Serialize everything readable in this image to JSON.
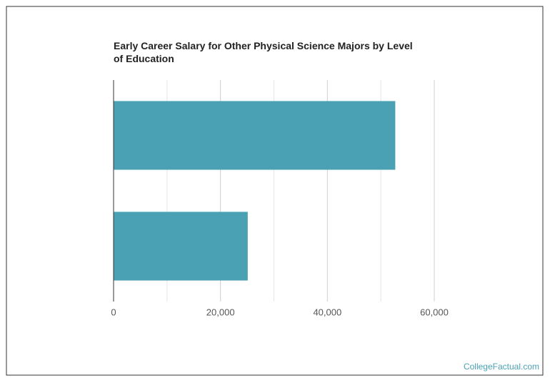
{
  "chart_data": {
    "type": "bar",
    "orientation": "horizontal",
    "title": "Early Career Salary for Other Physical Science Majors by Level of Education",
    "categories": [
      null,
      null
    ],
    "values": [
      52700,
      25100
    ],
    "color": "#4aa1b3",
    "xlim": [
      0,
      60000
    ],
    "xticks": [
      0,
      {
        "value": 20000,
        "label": "20,000"
      },
      {
        "value": 40000,
        "label": "40,000"
      },
      {
        "value": 60000,
        "label": "60,000"
      }
    ],
    "minor_grid": [
      10000,
      30000,
      50000
    ],
    "grid": true,
    "source": "CollegeFactual.com"
  }
}
